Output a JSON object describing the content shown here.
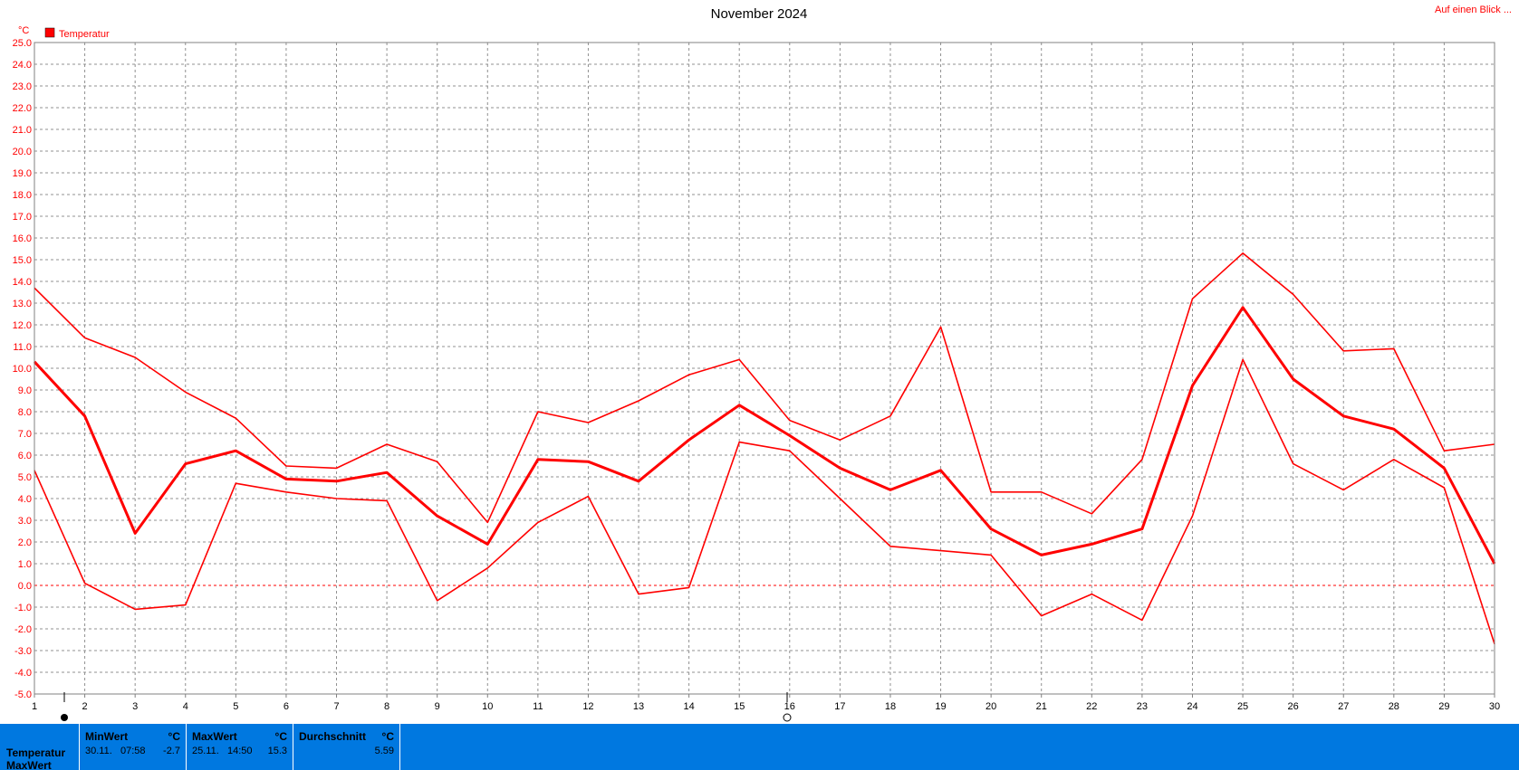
{
  "header": {
    "link_label": "Auf einen Blick ..."
  },
  "chart_data": {
    "type": "line",
    "title": "November 2024",
    "unit": "°C",
    "legend": [
      "Temperatur"
    ],
    "legend_position": "top-left",
    "grid": true,
    "ylim": [
      -5,
      25
    ],
    "yticks": [
      "25.0",
      "24.0",
      "23.0",
      "22.0",
      "21.0",
      "20.0",
      "19.0",
      "18.0",
      "17.0",
      "16.0",
      "15.0",
      "14.0",
      "13.0",
      "12.0",
      "11.0",
      "10.0",
      "9.0",
      "8.0",
      "7.0",
      "6.0",
      "5.0",
      "4.0",
      "3.0",
      "2.0",
      "1.0",
      "0.0",
      "-1.0",
      "-2.0",
      "-3.0",
      "-4.0",
      "-5.0"
    ],
    "x": [
      1,
      2,
      3,
      4,
      5,
      6,
      7,
      8,
      9,
      10,
      11,
      12,
      13,
      14,
      15,
      16,
      17,
      18,
      19,
      20,
      21,
      22,
      23,
      24,
      25,
      26,
      27,
      28,
      29,
      30
    ],
    "xticks": [
      "1",
      "2",
      "3",
      "4",
      "5",
      "6",
      "7",
      "8",
      "9",
      "10",
      "11",
      "12",
      "13",
      "14",
      "15",
      "16",
      "17",
      "18",
      "19",
      "20",
      "21",
      "22",
      "23",
      "24",
      "25",
      "26",
      "27",
      "28",
      "29",
      "30"
    ],
    "series": [
      {
        "name": "Temperatur",
        "values": [
          10.3,
          7.8,
          2.4,
          5.6,
          6.2,
          4.9,
          4.8,
          5.2,
          3.2,
          1.9,
          5.8,
          5.7,
          4.8,
          6.7,
          8.3,
          6.9,
          5.4,
          4.4,
          5.3,
          2.6,
          1.4,
          1.9,
          2.6,
          9.2,
          12.8,
          9.5,
          7.8,
          7.2,
          5.4,
          1.0
        ]
      },
      {
        "values": [
          13.7,
          11.4,
          10.5,
          8.9,
          7.7,
          5.5,
          5.4,
          6.5,
          5.7,
          2.9,
          8.0,
          7.5,
          8.5,
          9.7,
          10.4,
          7.6,
          6.7,
          7.8,
          11.9,
          4.3,
          4.3,
          3.3,
          5.8,
          13.2,
          15.3,
          13.4,
          10.8,
          10.9,
          6.2,
          6.5
        ]
      },
      {
        "values": [
          5.3,
          0.1,
          -1.1,
          -0.9,
          4.7,
          4.3,
          4.0,
          3.9,
          -0.7,
          0.8,
          2.9,
          4.1,
          -0.4,
          -0.1,
          6.6,
          6.2,
          4.0,
          1.8,
          1.6,
          1.4,
          -1.4,
          -0.4,
          -1.6,
          3.2,
          10.4,
          5.6,
          4.4,
          5.8,
          4.5,
          -2.7
        ]
      }
    ],
    "colors": {
      "line": "#ff0000",
      "grid": "#909090",
      "zero_line": "#ff0000",
      "stats_bg": "#0078e0"
    }
  },
  "stats": {
    "row_labels": [
      "Temperatur",
      "MaxWert"
    ],
    "min": {
      "header": "MinWert",
      "unit": "°C",
      "date": "30.11.",
      "time": "07:58",
      "value": "-2.7"
    },
    "max": {
      "header": "MaxWert",
      "unit": "°C",
      "date": "25.11.",
      "time": "14:50",
      "value": "15.3"
    },
    "avg": {
      "header": "Durchschnitt",
      "unit": "°C",
      "value": "5.59"
    }
  }
}
